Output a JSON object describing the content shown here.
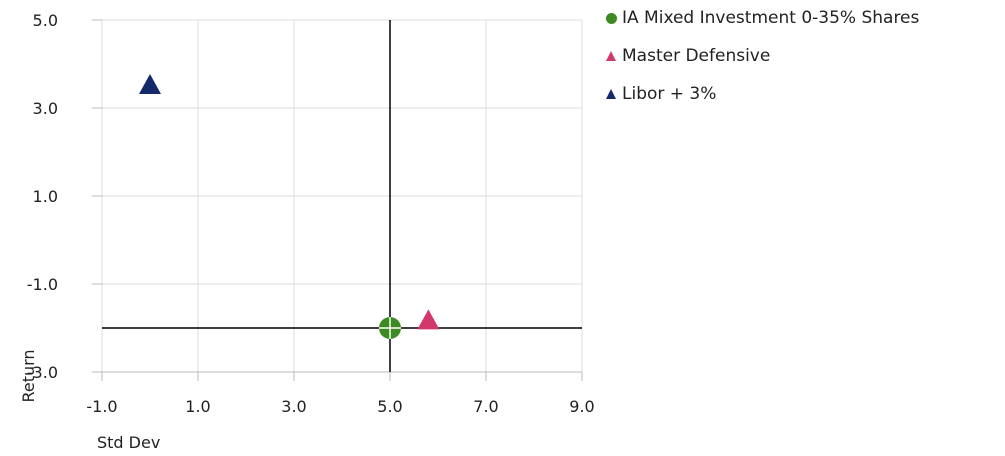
{
  "chart_data": {
    "type": "scatter",
    "title": "",
    "xlabel": "Std Dev",
    "ylabel": "Return",
    "xlim": [
      -1.0,
      9.0
    ],
    "ylim": [
      -3.0,
      5.0
    ],
    "xticks": [
      "-1.0",
      "1.0",
      "3.0",
      "5.0",
      "7.0",
      "9.0"
    ],
    "yticks": [
      "-3.0",
      "-1.0",
      "1.0",
      "3.0",
      "5.0"
    ],
    "grid": true,
    "legend_position": "top-right",
    "quadrant_lines": {
      "x": 5.0,
      "y": -2.0
    },
    "series": [
      {
        "name": "IA Mixed Investment 0-35% Shares",
        "marker": "circle-cross",
        "color": "#3d8a22",
        "points": [
          {
            "x": 5.0,
            "y": -2.0
          }
        ]
      },
      {
        "name": "Master Defensive",
        "marker": "triangle",
        "color": "#d2386c",
        "points": [
          {
            "x": 5.8,
            "y": -1.85
          }
        ]
      },
      {
        "name": "Libor + 3%",
        "marker": "triangle",
        "color": "#14296b",
        "points": [
          {
            "x": 0.0,
            "y": 3.5
          }
        ]
      }
    ]
  }
}
